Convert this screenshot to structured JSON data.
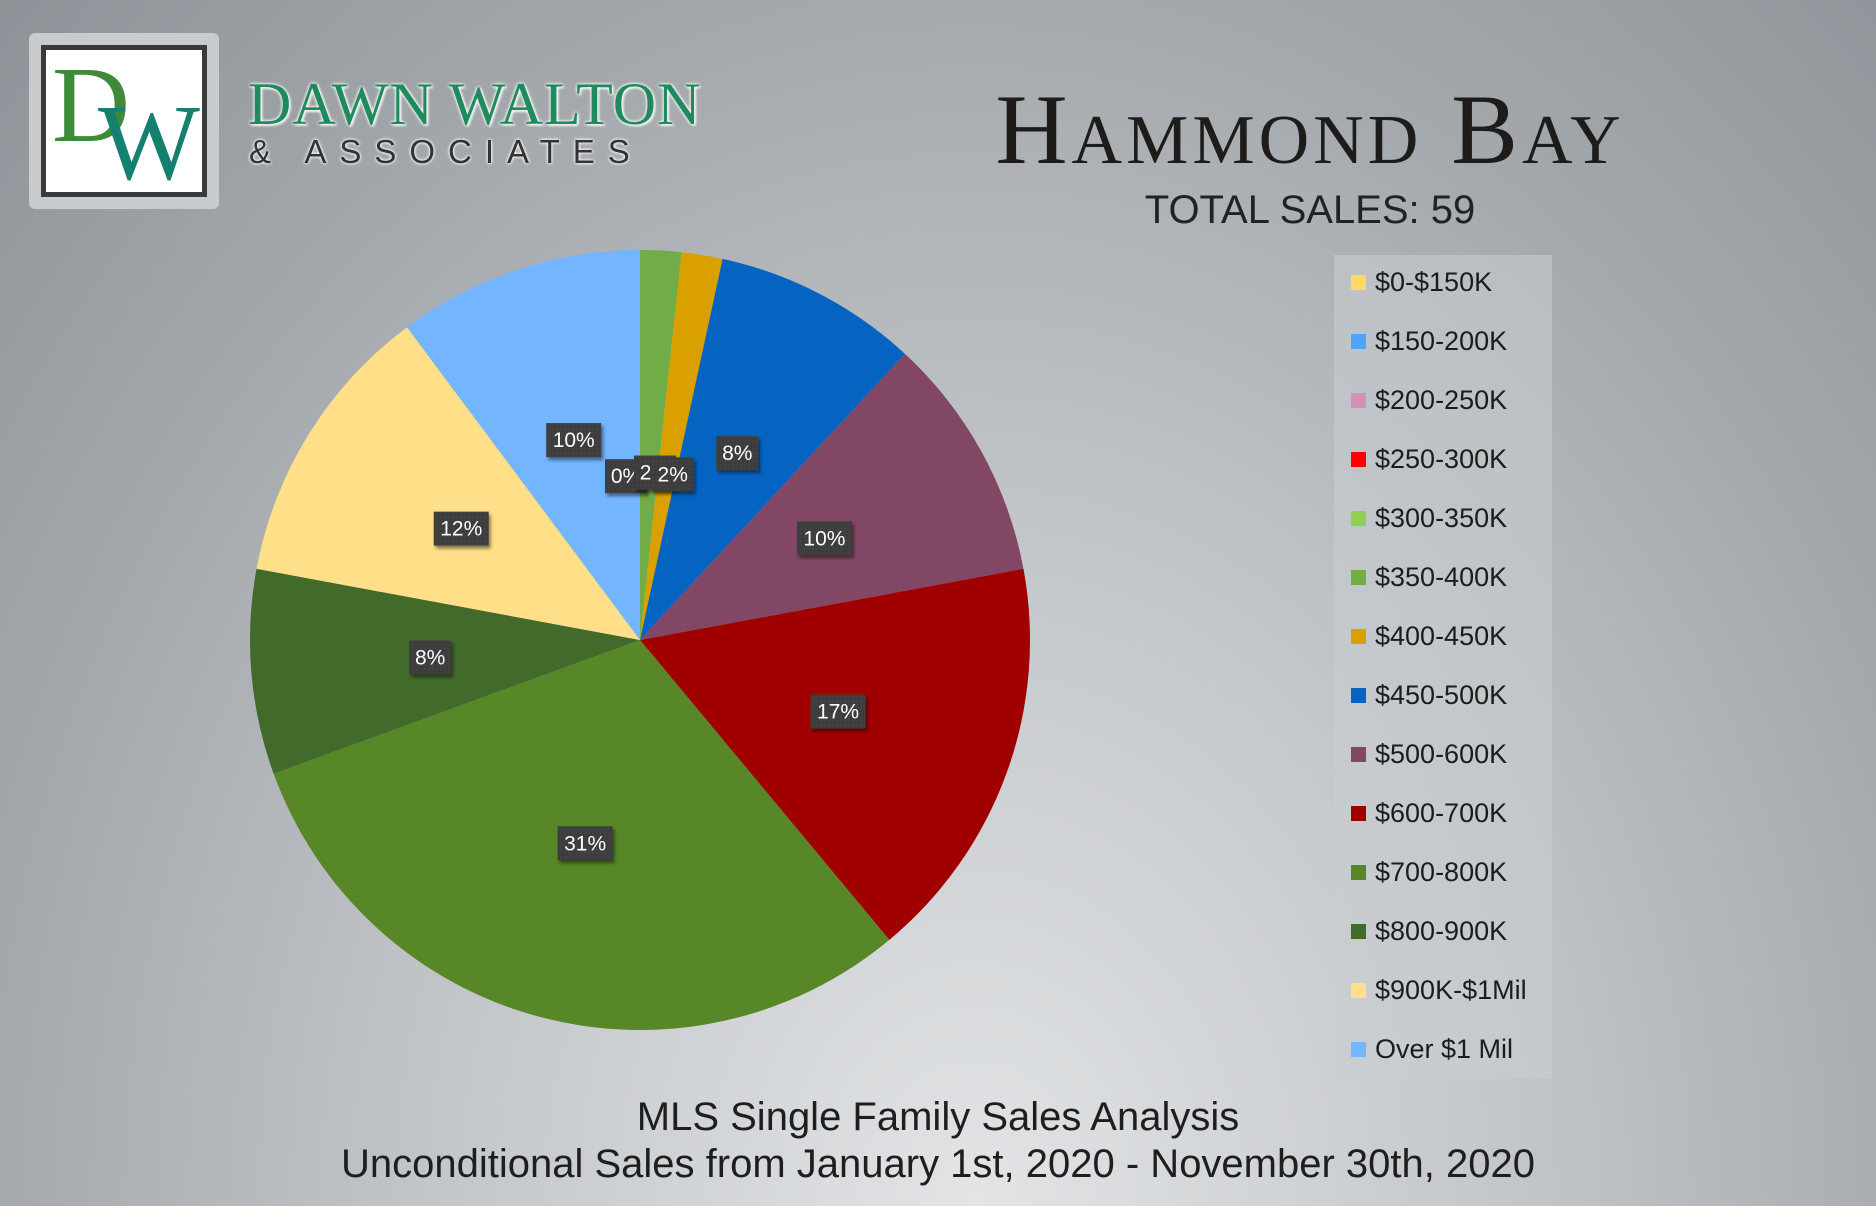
{
  "logo": {
    "monogram_d": "D",
    "monogram_w": "W",
    "brand_line1": "DAWN WALTON",
    "brand_line2": "& ASSOCIATES"
  },
  "header": {
    "title": "Hammond Bay",
    "total_sales": "TOTAL SALES: 59"
  },
  "footer": {
    "line1": "MLS Single Family Sales Analysis",
    "line2": "Unconditional Sales from January 1st, 2020 - November 30th, 2020"
  },
  "chart_data": {
    "type": "pie",
    "title": "Hammond Bay",
    "legend_position": "right",
    "slices": [
      {
        "label": "$0-$150K",
        "value": 0,
        "display": "",
        "color": "#ffd966"
      },
      {
        "label": "$150-200K",
        "value": 0,
        "display": "",
        "color": "#4da3ff"
      },
      {
        "label": "$200-250K",
        "value": 0,
        "display": "",
        "color": "#d68fb6"
      },
      {
        "label": "$250-300K",
        "value": 0,
        "display": "",
        "color": "#ff0000"
      },
      {
        "label": "$300-350K",
        "value": 0,
        "display": "0%",
        "color": "#92d050"
      },
      {
        "label": "$350-400K",
        "value": 1.7,
        "display": "2%",
        "color": "#70ad47"
      },
      {
        "label": "$400-450K",
        "value": 1.7,
        "display": "2%",
        "color": "#d9a000"
      },
      {
        "label": "$450-500K",
        "value": 8.5,
        "display": "8%",
        "color": "#0563c1"
      },
      {
        "label": "$500-600K",
        "value": 10.2,
        "display": "10%",
        "color": "#834766"
      },
      {
        "label": "$600-700K",
        "value": 16.9,
        "display": "17%",
        "color": "#a00000"
      },
      {
        "label": "$700-800K",
        "value": 30.5,
        "display": "31%",
        "color": "#578726"
      },
      {
        "label": "$800-900K",
        "value": 8.5,
        "display": "8%",
        "color": "#416a2b"
      },
      {
        "label": "$900K-$1Mil",
        "value": 11.9,
        "display": "12%",
        "color": "#ffdf88"
      },
      {
        "label": "Over $1 Mil",
        "value": 10.2,
        "display": "10%",
        "color": "#73b5ff"
      }
    ]
  }
}
